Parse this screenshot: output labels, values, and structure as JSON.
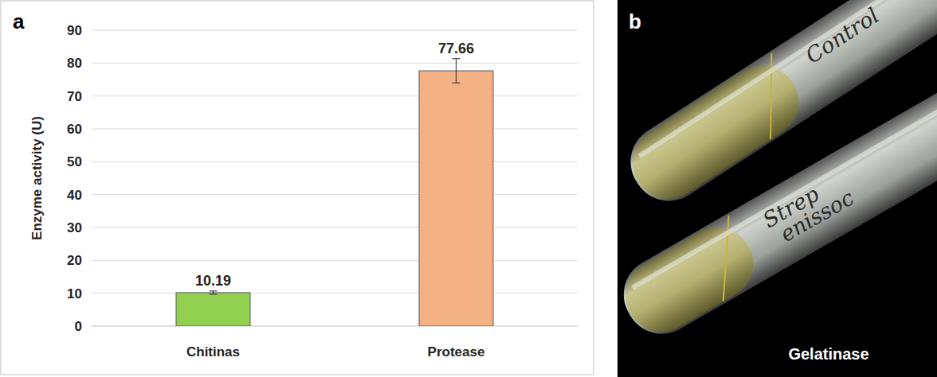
{
  "chart_data": {
    "type": "bar",
    "panel_letter": "a",
    "y_label": "Enzyme activity (U)",
    "categories": [
      "Chitinas",
      "Protease"
    ],
    "values": [
      10.19,
      77.66
    ],
    "errors": [
      0.5,
      3.7
    ],
    "colors": [
      "#92d050",
      "#f4b183"
    ],
    "ylim": [
      0,
      90
    ],
    "yticks": [
      0,
      10,
      20,
      30,
      40,
      50,
      60,
      70,
      80,
      90
    ],
    "grid": true,
    "data_labels": true
  },
  "photo": {
    "panel_letter": "b",
    "caption": "Gelatinase",
    "tube_labels": [
      [
        "Control"
      ],
      [
        "Strep",
        "enissoc"
      ]
    ]
  }
}
